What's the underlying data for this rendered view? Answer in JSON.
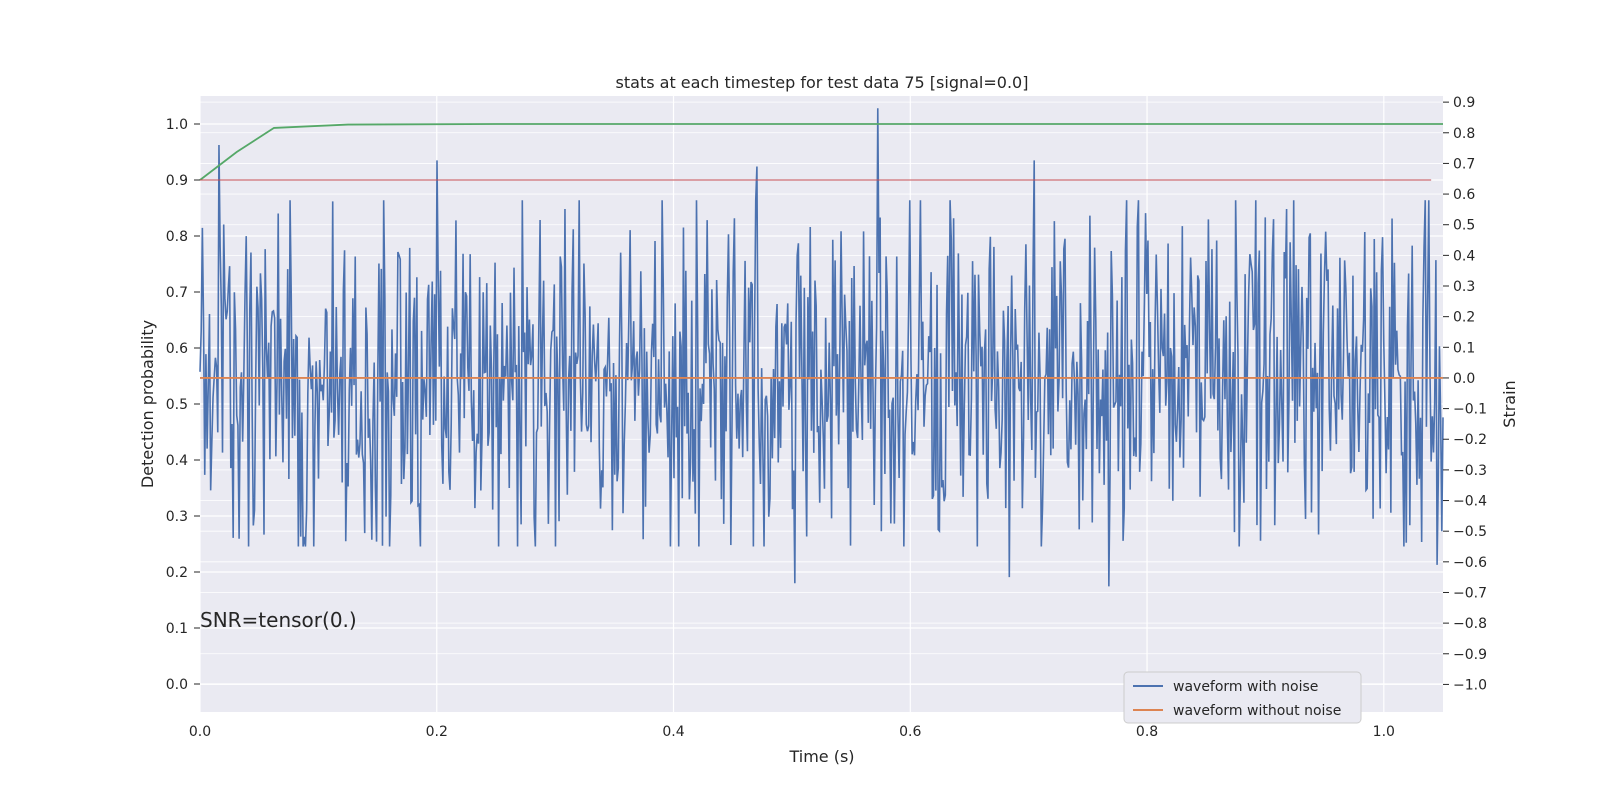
{
  "chart_data": {
    "type": "line",
    "title": "stats at each timestep for test data 75 [signal=0.0]",
    "xlabel": "Time (s)",
    "ylabel": "Detection probability",
    "y2label": "Strain",
    "xlim": [
      0.0,
      1.05
    ],
    "ylim": [
      -0.05,
      1.05
    ],
    "y2lim": [
      -1.09,
      0.92
    ],
    "x_ticks": [
      "0.0",
      "0.2",
      "0.4",
      "0.6",
      "0.8",
      "1.0"
    ],
    "y_ticks": [
      "0.0",
      "0.1",
      "0.2",
      "0.3",
      "0.4",
      "0.5",
      "0.6",
      "0.7",
      "0.8",
      "0.9",
      "1.0"
    ],
    "y2_ticks": [
      "0.9",
      "0.8",
      "0.7",
      "0.6",
      "0.5",
      "0.4",
      "0.3",
      "0.2",
      "0.1",
      "0.0",
      "−0.1",
      "−0.2",
      "−0.3",
      "−0.4",
      "−0.5",
      "−0.6",
      "−0.7",
      "−0.8",
      "−0.9",
      "−1.0"
    ],
    "grid": true,
    "legend_placement": "lower-right",
    "annotation": "SNR=tensor(0.)",
    "background": "#eaeaf2",
    "series": [
      {
        "name": "waveform with noise",
        "axis": "right",
        "color": "#4c72b0",
        "description": "dense noisy strain signal, approx 1050 samples, centered at 0",
        "notable_points": [
          {
            "x": 0.016,
            "y": 0.76
          },
          {
            "x": 0.2,
            "y": 0.71
          },
          {
            "x": 0.47,
            "y": 0.69
          },
          {
            "x": 0.573,
            "y": 0.88
          },
          {
            "x": 0.705,
            "y": 0.71
          },
          {
            "x": 0.502,
            "y": -0.67
          },
          {
            "x": 0.768,
            "y": -0.68
          },
          {
            "x": 0.684,
            "y": -0.65
          },
          {
            "x": 1.045,
            "y": -0.61
          }
        ]
      },
      {
        "name": "waveform without noise",
        "axis": "right",
        "color": "#dd8452",
        "x": [
          0.0,
          1.05
        ],
        "y": [
          0.0,
          0.0
        ]
      },
      {
        "axis": "left",
        "color": "#55a868",
        "x": [
          0.0,
          0.031,
          0.0625,
          0.125,
          0.25,
          0.5,
          1.05
        ],
        "y": [
          0.9,
          0.95,
          0.993,
          0.999,
          1.0,
          1.0,
          1.0
        ]
      },
      {
        "axis": "left",
        "color": "#c44e52",
        "x": [
          0.0,
          1.04
        ],
        "y": [
          0.9,
          0.9
        ]
      }
    ]
  }
}
